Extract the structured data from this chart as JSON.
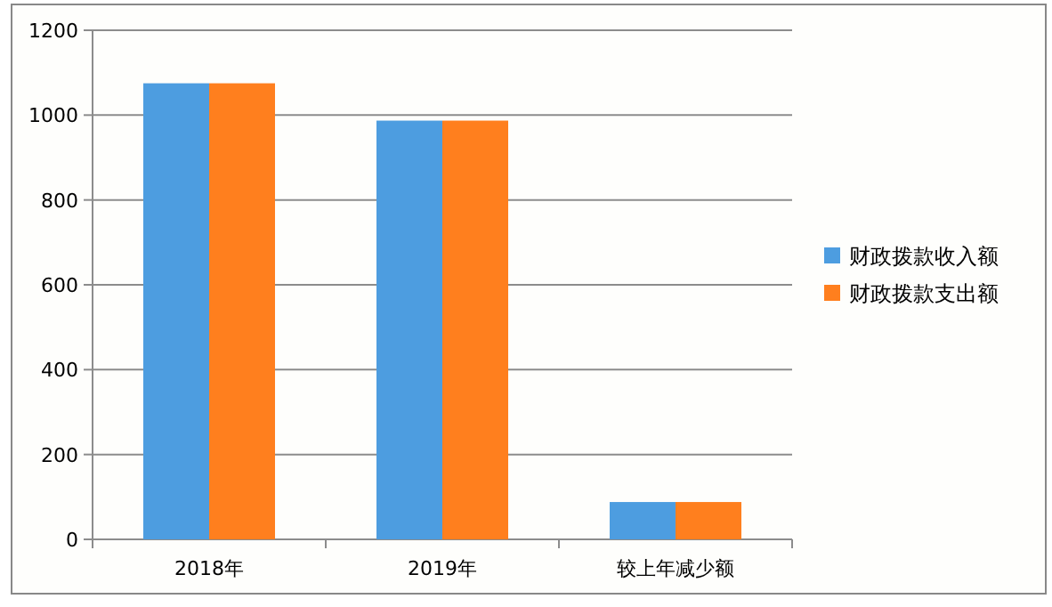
{
  "chart_data": {
    "type": "bar",
    "categories": [
      "2018年",
      "2019年",
      "较上年减少额"
    ],
    "series": [
      {
        "name": "财政拨款收入额",
        "color": "#4d9de0",
        "values": [
          1075,
          987,
          88
        ]
      },
      {
        "name": "财政拨款支出额",
        "color": "#ff7f1e",
        "values": [
          1075,
          987,
          88
        ]
      }
    ],
    "ylim": [
      0,
      1200
    ],
    "yticks": [
      0,
      200,
      400,
      600,
      800,
      1000,
      1200
    ],
    "grid": "y",
    "legend": "right"
  }
}
